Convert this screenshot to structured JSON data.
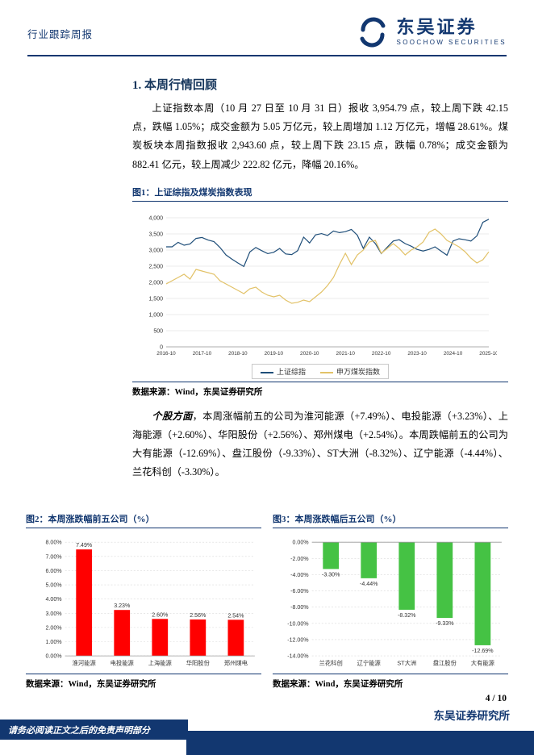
{
  "colors": {
    "navy": "#123770",
    "line_blue": "#1f4e79",
    "line_gold": "#e2c268",
    "bar_red": "#ff0000",
    "bar_green": "#45c244"
  },
  "header": {
    "report_type": "行业跟踪周报",
    "brand_name": "东吴证券",
    "brand_sub": "SOOCHOW SECURITIES"
  },
  "section": {
    "title": "1.  本周行情回顾",
    "paragraph1": "上证指数本周（10 月 27 日至 10 月 31 日）报收 3,954.79 点，较上周下跌 42.15 点，跌幅 1.05%；成交金额为 5.05 万亿元，较上周增加 1.12 万亿元，增幅 28.61%。煤炭板块本周指数报收 2,943.60 点，较上周下跌 23.15 点，跌幅 0.78%；成交金额为 882.41 亿元，较上周减少 222.82 亿元，降幅 20.16%。",
    "paragraph2_lead": "个股方面",
    "paragraph2_rest": "，本周涨幅前五的公司为淮河能源（+7.49%）、电投能源（+3.23%）、上海能源（+2.60%）、华阳股份（+2.56%）、郑州煤电（+2.54%）。本周跌幅前五的公司为大有能源（-12.69%）、盘江股份（-9.33%）、ST大洲（-8.32%）、辽宁能源（-4.44%）、兰花科创（-3.30%）。"
  },
  "fig1": {
    "title": "图1：上证综指及煤炭指数表现",
    "source": "数据来源：Wind，东吴证券研究所"
  },
  "fig2": {
    "title": "图2：本周涨跌幅前五公司（%）",
    "source": "数据来源：Wind，东吴证券研究所"
  },
  "fig3": {
    "title": "图3：本周涨跌幅后五公司（%）",
    "source": "数据来源：Wind，东吴证券研究所"
  },
  "footer": {
    "page": "4 / 10",
    "brand": "东吴证券研究所",
    "disclaimer": "请务必阅读正文之后的免责声明部分"
  },
  "chart_data": [
    {
      "id": "fig1",
      "type": "line",
      "title": "上证综指及煤炭指数表现",
      "x_labels": [
        "2016-10",
        "2017-10",
        "2018-10",
        "2019-10",
        "2020-10",
        "2021-10",
        "2022-10",
        "2023-10",
        "2024-10",
        "2025-10"
      ],
      "ylim": [
        0,
        4200
      ],
      "yticks": [
        0,
        500,
        1000,
        1500,
        2000,
        2500,
        3000,
        3500,
        4000
      ],
      "grid": true,
      "legend_position": "bottom",
      "series": [
        {
          "name": "上证综指",
          "color": "#1f4e79",
          "values": [
            3100,
            3100,
            3240,
            3150,
            3190,
            3360,
            3390,
            3310,
            3260,
            3080,
            2850,
            2720,
            2600,
            2490,
            2940,
            3080,
            2980,
            2890,
            2930,
            3050,
            2880,
            2860,
            2980,
            3400,
            3220,
            3470,
            3510,
            3450,
            3590,
            3540,
            3570,
            3640,
            3460,
            3050,
            3400,
            3200,
            2890,
            3090,
            3280,
            3320,
            3200,
            3120,
            3020,
            2970,
            3020,
            3100,
            2970,
            2840,
            3280,
            3350,
            3320,
            3280,
            3440,
            3860,
            3955
          ]
        },
        {
          "name": "申万煤炭指数",
          "color": "#e2c268",
          "values": [
            1950,
            2050,
            2150,
            2250,
            2100,
            2400,
            2350,
            2300,
            2250,
            2050,
            1950,
            1850,
            1750,
            1650,
            1800,
            1850,
            1700,
            1600,
            1550,
            1600,
            1450,
            1350,
            1380,
            1450,
            1400,
            1550,
            1700,
            1900,
            2150,
            2550,
            2900,
            2550,
            2850,
            3000,
            3250,
            3300,
            2900,
            3050,
            3200,
            3050,
            2850,
            3000,
            3100,
            3250,
            3550,
            3650,
            3500,
            3300,
            3200,
            3100,
            2950,
            2750,
            2600,
            2700,
            2944
          ]
        }
      ]
    },
    {
      "id": "fig2",
      "type": "bar",
      "title": "本周涨跌幅前五公司（%）",
      "categories": [
        "淮河能源",
        "电投能源",
        "上海能源",
        "华阳股份",
        "郑州煤电"
      ],
      "values": [
        7.49,
        3.23,
        2.6,
        2.56,
        2.54
      ],
      "value_labels": [
        "7.49%",
        "3.23%",
        "2.60%",
        "2.56%",
        "2.54%"
      ],
      "bar_color": "#ff0000",
      "ylim": [
        0,
        8
      ],
      "ytick_step": 1,
      "grid": true
    },
    {
      "id": "fig3",
      "type": "bar",
      "title": "本周涨跌幅后五公司（%）",
      "categories": [
        "兰花科创",
        "辽宁能源",
        "ST大洲",
        "盘江股份",
        "大有能源"
      ],
      "values": [
        -3.3,
        -4.44,
        -8.32,
        -9.33,
        -12.69
      ],
      "value_labels": [
        "-3.30%",
        "-4.44%",
        "-8.32%",
        "-9.33%",
        "-12.69%"
      ],
      "bar_color": "#45c244",
      "ylim": [
        -14,
        0
      ],
      "ytick_step": 2,
      "grid": true
    }
  ]
}
